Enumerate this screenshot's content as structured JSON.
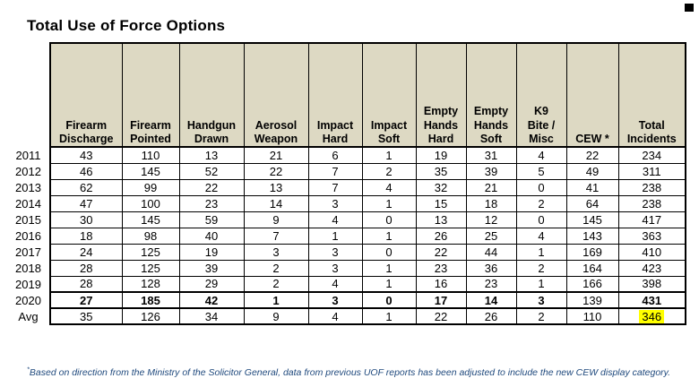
{
  "page": {
    "title": "Total Use of Force Options",
    "footnote_marker": "*",
    "footnote_text": "Based on direction from the Ministry of the Solicitor General, data from previous UOF reports has been adjusted to include the new CEW display category."
  },
  "colors": {
    "header_bg": "#ddd9c3",
    "highlight": "#ffff00",
    "footnote": "#1f497d",
    "border": "#000000"
  },
  "chart_data": {
    "type": "table",
    "title": "Total Use of Force Options",
    "columns": [
      "Firearm Discharge",
      "Firearm Pointed",
      "Handgun Drawn",
      "Aerosol Weapon",
      "Impact Hard",
      "Impact Soft",
      "Empty Hands Hard",
      "Empty Hands Soft",
      "K9 Bite / Misc",
      "CEW *",
      "Total Incidents"
    ],
    "row_labels": [
      "2011",
      "2012",
      "2013",
      "2014",
      "2015",
      "2016",
      "2017",
      "2018",
      "2019",
      "2020",
      "Avg"
    ],
    "values": [
      [
        43,
        110,
        13,
        21,
        6,
        1,
        19,
        31,
        4,
        22,
        234
      ],
      [
        46,
        145,
        52,
        22,
        7,
        2,
        35,
        39,
        5,
        49,
        311
      ],
      [
        62,
        99,
        22,
        13,
        7,
        4,
        32,
        21,
        0,
        41,
        238
      ],
      [
        47,
        100,
        23,
        14,
        3,
        1,
        15,
        18,
        2,
        64,
        238
      ],
      [
        30,
        145,
        59,
        9,
        4,
        0,
        13,
        12,
        0,
        145,
        417
      ],
      [
        18,
        98,
        40,
        7,
        1,
        1,
        26,
        25,
        4,
        143,
        363
      ],
      [
        24,
        125,
        19,
        3,
        3,
        0,
        22,
        44,
        1,
        169,
        410
      ],
      [
        28,
        125,
        39,
        2,
        3,
        1,
        23,
        36,
        2,
        164,
        423
      ],
      [
        28,
        128,
        29,
        2,
        4,
        1,
        16,
        23,
        1,
        166,
        398
      ],
      [
        27,
        185,
        42,
        1,
        3,
        0,
        17,
        14,
        3,
        139,
        431
      ],
      [
        35,
        126,
        34,
        9,
        4,
        1,
        22,
        26,
        2,
        110,
        346
      ]
    ]
  },
  "table": {
    "column_headers": [
      "Firearm\nDischarge",
      "Firearm\nPointed",
      "Handgun\nDrawn",
      "Aerosol\nWeapon",
      "Impact\nHard",
      "Impact\nSoft",
      "Empty\nHands\nHard",
      "Empty\nHands\nSoft",
      "K9\nBite /\nMisc",
      "CEW *",
      "Total\nIncidents"
    ],
    "rows": [
      {
        "label": "2011",
        "values": [
          "43",
          "110",
          "13",
          "21",
          "6",
          "1",
          "19",
          "31",
          "4",
          "22",
          "234"
        ]
      },
      {
        "label": "2012",
        "values": [
          "46",
          "145",
          "52",
          "22",
          "7",
          "2",
          "35",
          "39",
          "5",
          "49",
          "311"
        ]
      },
      {
        "label": "2013",
        "values": [
          "62",
          "99",
          "22",
          "13",
          "7",
          "4",
          "32",
          "21",
          "0",
          "41",
          "238"
        ]
      },
      {
        "label": "2014",
        "values": [
          "47",
          "100",
          "23",
          "14",
          "3",
          "1",
          "15",
          "18",
          "2",
          "64",
          "238"
        ]
      },
      {
        "label": "2015",
        "values": [
          "30",
          "145",
          "59",
          "9",
          "4",
          "0",
          "13",
          "12",
          "0",
          "145",
          "417"
        ]
      },
      {
        "label": "2016",
        "values": [
          "18",
          "98",
          "40",
          "7",
          "1",
          "1",
          "26",
          "25",
          "4",
          "143",
          "363"
        ]
      },
      {
        "label": "2017",
        "values": [
          "24",
          "125",
          "19",
          "3",
          "3",
          "0",
          "22",
          "44",
          "1",
          "169",
          "410"
        ]
      },
      {
        "label": "2018",
        "values": [
          "28",
          "125",
          "39",
          "2",
          "3",
          "1",
          "23",
          "36",
          "2",
          "164",
          "423"
        ]
      },
      {
        "label": "2019",
        "values": [
          "28",
          "128",
          "29",
          "2",
          "4",
          "1",
          "16",
          "23",
          "1",
          "166",
          "398"
        ]
      },
      {
        "label": "2020",
        "values": [
          "27",
          "185",
          "42",
          "1",
          "3",
          "0",
          "17",
          "14",
          "3",
          "139",
          "431"
        ],
        "bold_value_indices": [
          0,
          1,
          2,
          3,
          4,
          5,
          6,
          7,
          8,
          10
        ],
        "thick_border": true
      },
      {
        "label": "Avg",
        "values": [
          "35",
          "126",
          "34",
          "9",
          "4",
          "1",
          "22",
          "26",
          "2",
          "110",
          "346"
        ],
        "highlight_value_indices": [
          10
        ]
      }
    ]
  }
}
